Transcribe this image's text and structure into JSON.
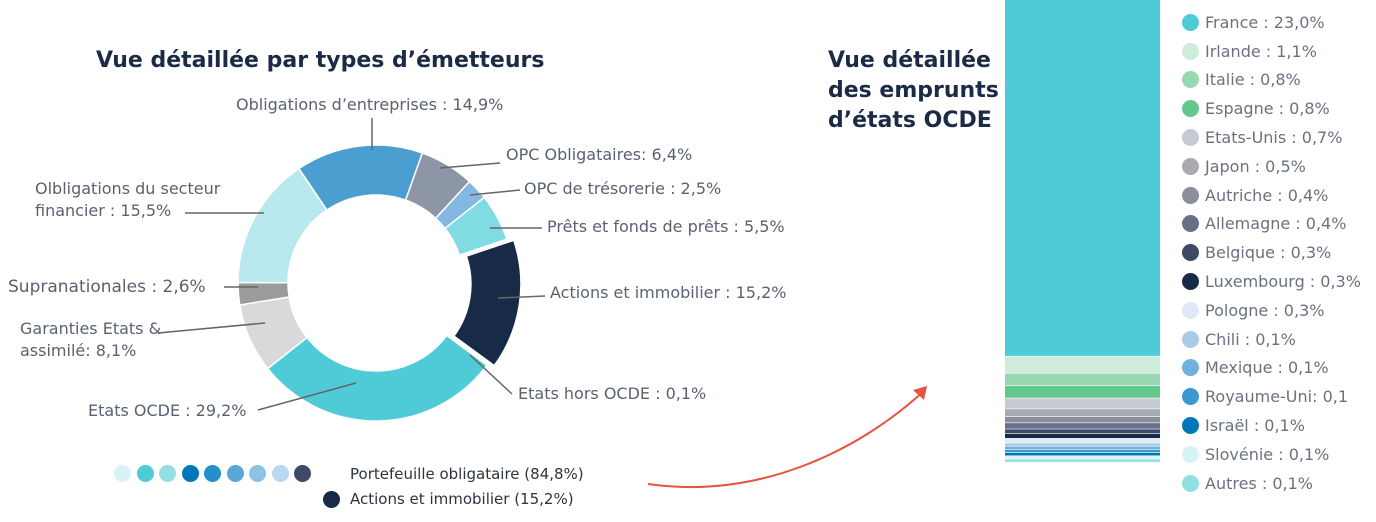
{
  "chart_data": [
    {
      "type": "pie",
      "title": "Vue détaillée par types d’émetteurs",
      "slices": [
        {
          "label": "Obligations d’entreprises : 14,9%",
          "value": 14.9,
          "color": "#4a9fd0"
        },
        {
          "label": "OPC Obligataires: 6,4%",
          "value": 6.4,
          "color": "#8c96a6"
        },
        {
          "label": "OPC de trésorerie : 2,5%",
          "value": 2.5,
          "color": "#82b8e2"
        },
        {
          "label": "Prêts et fonds de prêts : 5,5%",
          "value": 5.5,
          "color": "#80dbe2"
        },
        {
          "label": "Actions et immobilier : 15,2%",
          "value": 15.2,
          "color": "#172a47",
          "exploded": true
        },
        {
          "label": "Etats hors OCDE : 0,1%",
          "value": 0.1,
          "color": "#c7d0dc"
        },
        {
          "label": "Etats OCDE : 29,2%",
          "value": 29.2,
          "color": "#4ecbd6"
        },
        {
          "label": "Garanties Etats & assimilé: 8,1%",
          "value": 8.1,
          "color": "#d8d9db"
        },
        {
          "label": "Supranationales : 2,6%",
          "value": 2.6,
          "color": "#9a9b9d"
        },
        {
          "label": "Olbligations du secteur financier : 15,5%",
          "value": 15.5,
          "color": "#b9e9ee"
        }
      ],
      "legend": [
        {
          "label": "Portefeuille obligataire (84,8%)",
          "colors": [
            "#d9f3f5",
            "#4ecbd6",
            "#93dfe4",
            "#0077b6",
            "#2390cc",
            "#59a7d6",
            "#8fc1e4",
            "#bad8ef",
            "#3f4b66"
          ]
        },
        {
          "label": "Actions et immobilier (15,2%)",
          "colors": [
            "#172a47"
          ]
        }
      ]
    },
    {
      "type": "bar",
      "stacked": true,
      "title": "Vue détaillée des emprunts d’états OCDE",
      "series": [
        {
          "name": "France : 23,0%",
          "value": 23.0,
          "color": "#4ecbd6"
        },
        {
          "name": "Irlande : 1,1%",
          "value": 1.1,
          "color": "#cfecdb"
        },
        {
          "name": "Italie : 0,8%",
          "value": 0.8,
          "color": "#98d8b0"
        },
        {
          "name": "Espagne : 0,8%",
          "value": 0.8,
          "color": "#64c88d"
        },
        {
          "name": "Etats-Unis : 0,7%",
          "value": 0.7,
          "color": "#c6cad3"
        },
        {
          "name": "Japon : 0,5%",
          "value": 0.5,
          "color": "#a9abb0"
        },
        {
          "name": "Autriche : 0,4%",
          "value": 0.4,
          "color": "#8a8f99"
        },
        {
          "name": "Allemagne : 0,4%",
          "value": 0.4,
          "color": "#667089"
        },
        {
          "name": "Belgique : 0,3%",
          "value": 0.3,
          "color": "#3d4a66"
        },
        {
          "name": "Luxembourg : 0,3%",
          "value": 0.3,
          "color": "#172a47"
        },
        {
          "name": "Pologne : 0,3%",
          "value": 0.3,
          "color": "#dde9f5"
        },
        {
          "name": "Chili : 0,1%",
          "value": 0.1,
          "color": "#a9cbe8"
        },
        {
          "name": "Mexique : 0,1%",
          "value": 0.1,
          "color": "#6fb0dc"
        },
        {
          "name": "Royaume-Uni: 0,1",
          "value": 0.1,
          "color": "#3c98cf"
        },
        {
          "name": "Israël : 0,1%",
          "value": 0.1,
          "color": "#0077b6"
        },
        {
          "name": "Slovénie : 0,1%",
          "value": 0.1,
          "color": "#d8f3f5"
        },
        {
          "name": "Autres : 0,1%",
          "value": 0.1,
          "color": "#8fdfe3"
        }
      ]
    }
  ]
}
